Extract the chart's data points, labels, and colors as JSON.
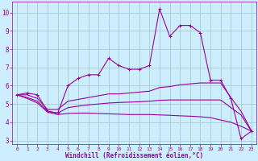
{
  "background_color": "#cceeff",
  "grid_color": "#aacccc",
  "line_color": "#990099",
  "xlabel": "Windchill (Refroidissement éolien,°C)",
  "xlim": [
    -0.5,
    23.5
  ],
  "ylim": [
    2.8,
    10.6
  ],
  "yticks": [
    3,
    4,
    5,
    6,
    7,
    8,
    9,
    10
  ],
  "xticks": [
    0,
    1,
    2,
    3,
    4,
    5,
    6,
    7,
    8,
    9,
    10,
    11,
    12,
    13,
    14,
    15,
    16,
    17,
    18,
    19,
    20,
    21,
    22,
    23
  ],
  "series": [
    {
      "x": [
        0,
        1,
        2,
        3,
        4,
        5,
        6,
        7,
        8,
        9,
        10,
        11,
        12,
        13,
        14,
        15,
        16,
        17,
        18,
        19,
        20,
        21,
        22,
        23
      ],
      "y": [
        5.5,
        5.6,
        5.5,
        4.6,
        4.5,
        6.0,
        6.4,
        6.6,
        6.6,
        7.5,
        7.1,
        6.9,
        6.9,
        7.1,
        10.2,
        8.7,
        9.3,
        9.3,
        8.9,
        6.3,
        6.3,
        5.3,
        3.1,
        3.5
      ],
      "marker": "+"
    },
    {
      "x": [
        0,
        1,
        2,
        3,
        4,
        5,
        6,
        7,
        8,
        9,
        10,
        11,
        12,
        13,
        14,
        15,
        16,
        17,
        18,
        19,
        20,
        21,
        22,
        23
      ],
      "y": [
        5.5,
        5.5,
        5.3,
        4.7,
        4.7,
        5.15,
        5.25,
        5.35,
        5.45,
        5.55,
        5.55,
        5.6,
        5.65,
        5.7,
        5.9,
        5.95,
        6.05,
        6.1,
        6.15,
        6.15,
        6.15,
        5.35,
        4.6,
        3.55
      ],
      "marker": null
    },
    {
      "x": [
        0,
        1,
        2,
        3,
        4,
        5,
        6,
        7,
        8,
        9,
        10,
        11,
        12,
        13,
        14,
        15,
        16,
        17,
        18,
        19,
        20,
        21,
        22,
        23
      ],
      "y": [
        5.5,
        5.35,
        5.15,
        4.6,
        4.5,
        4.8,
        4.88,
        4.95,
        5.0,
        5.05,
        5.08,
        5.1,
        5.12,
        5.15,
        5.2,
        5.22,
        5.22,
        5.22,
        5.22,
        5.22,
        5.22,
        4.8,
        4.4,
        3.52
      ],
      "marker": null
    },
    {
      "x": [
        0,
        1,
        2,
        3,
        4,
        5,
        6,
        7,
        8,
        9,
        10,
        11,
        12,
        13,
        14,
        15,
        16,
        17,
        18,
        19,
        20,
        21,
        22,
        23
      ],
      "y": [
        5.5,
        5.3,
        5.05,
        4.55,
        4.42,
        4.48,
        4.5,
        4.5,
        4.48,
        4.46,
        4.44,
        4.42,
        4.42,
        4.42,
        4.4,
        4.38,
        4.35,
        4.33,
        4.3,
        4.25,
        4.12,
        4.0,
        3.78,
        3.52
      ],
      "marker": null
    }
  ]
}
